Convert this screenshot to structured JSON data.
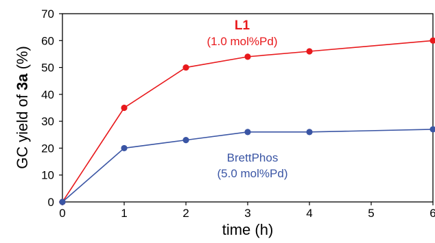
{
  "chart_data": {
    "type": "line",
    "xlabel": "time (h)",
    "ylabel": {
      "prefix": "GC yield of ",
      "bold": "3a",
      "suffix": " (%)"
    },
    "xlim": [
      0,
      6
    ],
    "ylim": [
      0,
      70
    ],
    "xticks": [
      0,
      1,
      2,
      3,
      4,
      5,
      6
    ],
    "yticks": [
      0,
      10,
      20,
      30,
      40,
      50,
      60,
      70
    ],
    "grid": false,
    "series": [
      {
        "name": "L1",
        "sublabel": "(1.0 mol%Pd)",
        "color": "#e8191c",
        "x": [
          0,
          1,
          2,
          3,
          4,
          6
        ],
        "values": [
          0,
          35,
          50,
          54,
          56,
          60
        ]
      },
      {
        "name": "BrettPhos",
        "sublabel": "(5.0 mol%Pd)",
        "color": "#3a55a4",
        "x": [
          0,
          1,
          2,
          3,
          4,
          6
        ],
        "values": [
          0,
          20,
          23,
          26,
          26,
          27
        ]
      }
    ]
  }
}
